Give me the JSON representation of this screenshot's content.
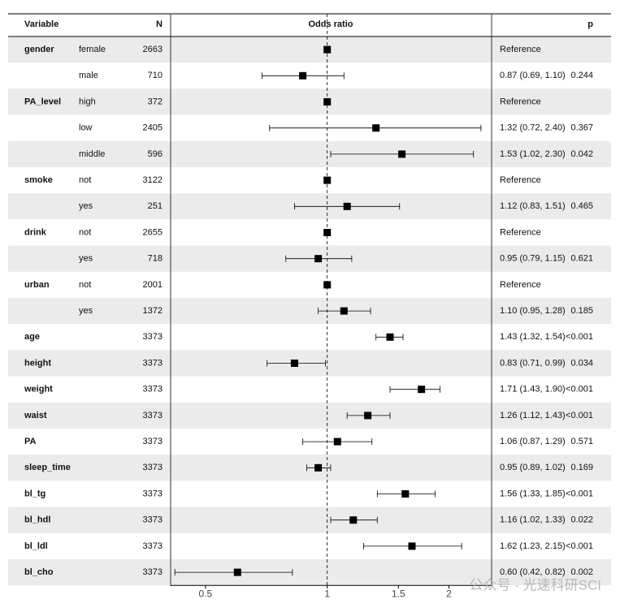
{
  "chart_data": {
    "type": "forest",
    "headers": {
      "variable": "Variable",
      "n": "N",
      "plot": "Odds ratio",
      "p": "p"
    },
    "xscale": "log",
    "xlim": [
      0.41,
      2.55
    ],
    "xticks": [
      0.5,
      1,
      1.5,
      2
    ],
    "ref_line": 1,
    "marker_color": "#000000",
    "stripe_color": "#ebebeb",
    "rows": [
      {
        "variable": "gender",
        "level": "female",
        "n": 2663,
        "or": 1,
        "lower": null,
        "upper": null,
        "label": "Reference",
        "p": null
      },
      {
        "variable": null,
        "level": "male",
        "n": 710,
        "or": 0.87,
        "lower": 0.69,
        "upper": 1.1,
        "label": "0.87 (0.69, 1.10)",
        "p": "0.244"
      },
      {
        "variable": "PA_level",
        "level": "high",
        "n": 372,
        "or": 1,
        "lower": null,
        "upper": null,
        "label": "Reference",
        "p": null
      },
      {
        "variable": null,
        "level": "low",
        "n": 2405,
        "or": 1.32,
        "lower": 0.72,
        "upper": 2.4,
        "label": "1.32 (0.72, 2.40)",
        "p": "0.367"
      },
      {
        "variable": null,
        "level": "middle",
        "n": 596,
        "or": 1.53,
        "lower": 1.02,
        "upper": 2.3,
        "label": "1.53 (1.02, 2.30)",
        "p": "0.042"
      },
      {
        "variable": "smoke",
        "level": "not",
        "n": 3122,
        "or": 1,
        "lower": null,
        "upper": null,
        "label": "Reference",
        "p": null
      },
      {
        "variable": null,
        "level": "yes",
        "n": 251,
        "or": 1.12,
        "lower": 0.83,
        "upper": 1.51,
        "label": "1.12 (0.83, 1.51)",
        "p": "0.465"
      },
      {
        "variable": "drink",
        "level": "not",
        "n": 2655,
        "or": 1,
        "lower": null,
        "upper": null,
        "label": "Reference",
        "p": null
      },
      {
        "variable": null,
        "level": "yes",
        "n": 718,
        "or": 0.95,
        "lower": 0.79,
        "upper": 1.15,
        "label": "0.95 (0.79, 1.15)",
        "p": "0.621"
      },
      {
        "variable": "urban",
        "level": "not",
        "n": 2001,
        "or": 1,
        "lower": null,
        "upper": null,
        "label": "Reference",
        "p": null
      },
      {
        "variable": null,
        "level": "yes",
        "n": 1372,
        "or": 1.1,
        "lower": 0.95,
        "upper": 1.28,
        "label": "1.10 (0.95, 1.28)",
        "p": "0.185"
      },
      {
        "variable": "age",
        "level": null,
        "n": 3373,
        "or": 1.43,
        "lower": 1.32,
        "upper": 1.54,
        "label": "1.43 (1.32, 1.54)",
        "p": "<0.001"
      },
      {
        "variable": "height",
        "level": null,
        "n": 3373,
        "or": 0.83,
        "lower": 0.71,
        "upper": 0.99,
        "label": "0.83 (0.71, 0.99)",
        "p": "0.034"
      },
      {
        "variable": "weight",
        "level": null,
        "n": 3373,
        "or": 1.71,
        "lower": 1.43,
        "upper": 1.9,
        "label": "1.71 (1.43, 1.90)",
        "p": "<0.001"
      },
      {
        "variable": "waist",
        "level": null,
        "n": 3373,
        "or": 1.26,
        "lower": 1.12,
        "upper": 1.43,
        "label": "1.26 (1.12, 1.43)",
        "p": "<0.001"
      },
      {
        "variable": "PA",
        "level": null,
        "n": 3373,
        "or": 1.06,
        "lower": 0.87,
        "upper": 1.29,
        "label": "1.06 (0.87, 1.29)",
        "p": "0.571"
      },
      {
        "variable": "sleep_time",
        "level": null,
        "n": 3373,
        "or": 0.95,
        "lower": 0.89,
        "upper": 1.02,
        "label": "0.95 (0.89, 1.02)",
        "p": "0.169"
      },
      {
        "variable": "bl_tg",
        "level": null,
        "n": 3373,
        "or": 1.56,
        "lower": 1.33,
        "upper": 1.85,
        "label": "1.56 (1.33, 1.85)",
        "p": "<0.001"
      },
      {
        "variable": "bl_hdl",
        "level": null,
        "n": 3373,
        "or": 1.16,
        "lower": 1.02,
        "upper": 1.33,
        "label": "1.16 (1.02, 1.33)",
        "p": "0.022"
      },
      {
        "variable": "bl_ldl",
        "level": null,
        "n": 3373,
        "or": 1.62,
        "lower": 1.23,
        "upper": 2.15,
        "label": "1.62 (1.23, 2.15)",
        "p": "<0.001"
      },
      {
        "variable": "bl_cho",
        "level": null,
        "n": 3373,
        "or": 0.6,
        "lower": 0.42,
        "upper": 0.82,
        "label": "0.60 (0.42, 0.82)",
        "p": "0.002"
      }
    ],
    "watermark": "公众号 · 光速科研SCI"
  }
}
